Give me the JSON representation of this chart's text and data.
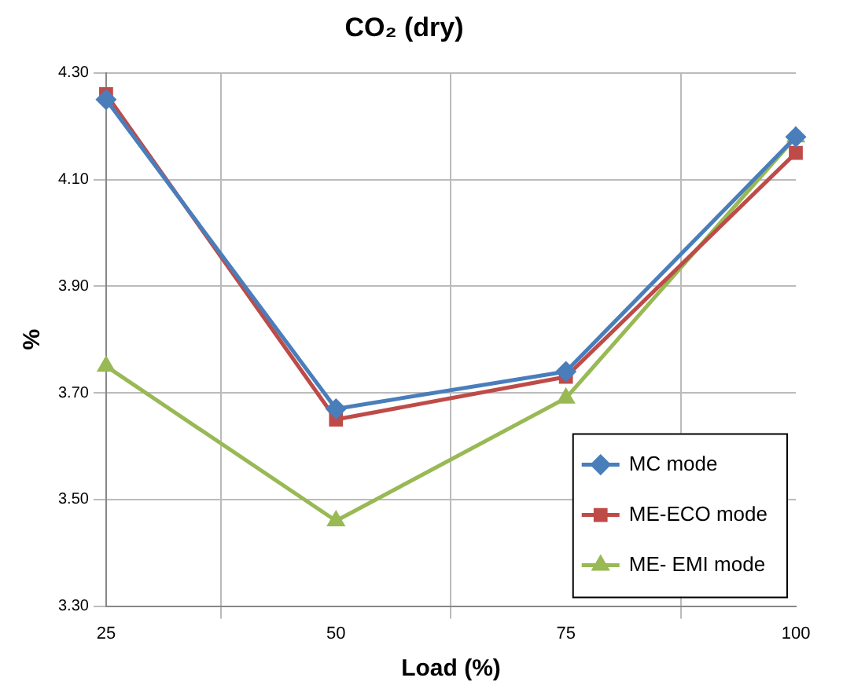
{
  "chart_data": {
    "type": "line",
    "title": "CO₂ (dry)",
    "xlabel": "Load (%)",
    "ylabel": "%",
    "categories": [
      "25",
      "50",
      "75",
      "100"
    ],
    "series": [
      {
        "name": "MC mode",
        "color": "#4a7ebb",
        "marker": "diamond",
        "values": [
          4.25,
          3.67,
          3.74,
          4.18
        ]
      },
      {
        "name": "ME-ECO mode",
        "color": "#be4b48",
        "marker": "square",
        "values": [
          4.26,
          3.65,
          3.73,
          4.15
        ]
      },
      {
        "name": "ME- EMI mode",
        "color": "#98b954",
        "marker": "triangle",
        "values": [
          3.75,
          3.46,
          3.69,
          4.18
        ]
      }
    ],
    "ylim": [
      3.3,
      4.3
    ],
    "yticks": [
      {
        "value": 3.3,
        "label": "3.30"
      },
      {
        "value": 3.5,
        "label": "3.50"
      },
      {
        "value": 3.7,
        "label": "3.70"
      },
      {
        "value": 3.9,
        "label": "3.90"
      },
      {
        "value": 4.1,
        "label": "4.10"
      },
      {
        "value": 4.3,
        "label": "4.30"
      }
    ],
    "grid": true,
    "legend": "bottom right",
    "line_style": "solid"
  }
}
